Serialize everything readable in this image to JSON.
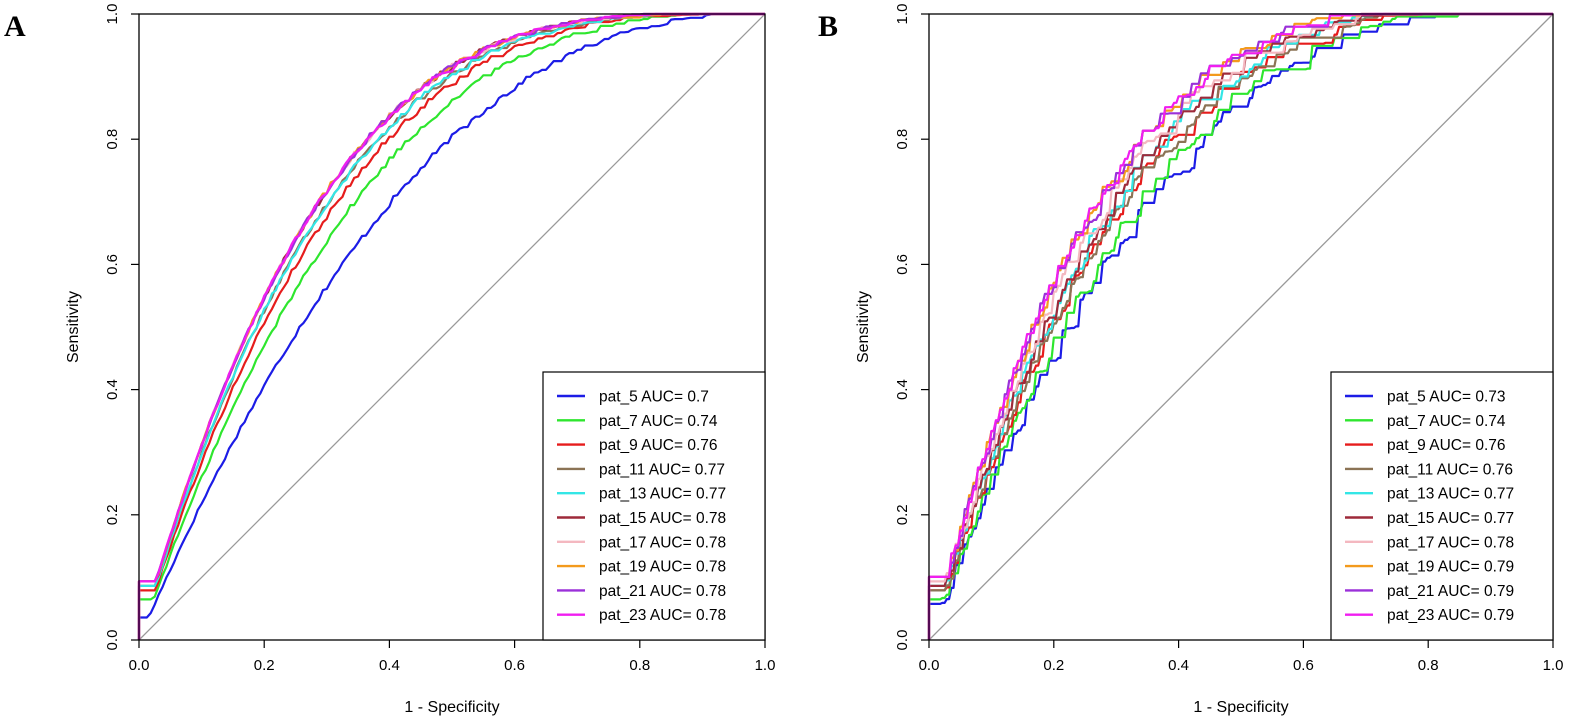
{
  "chart_data": [
    {
      "type": "line",
      "panel_label": "A",
      "xlabel": "1 - Specificity",
      "ylabel": "Sensitivity",
      "xlim": [
        0,
        1
      ],
      "ylim": [
        0,
        1
      ],
      "xticks": [
        "0.0",
        "0.2",
        "0.4",
        "0.6",
        "0.8",
        "1.0"
      ],
      "yticks": [
        "0.0",
        "0.2",
        "0.4",
        "0.6",
        "0.8",
        "1.0"
      ],
      "legend_position": "bottom-right",
      "reference_line": {
        "x": [
          0,
          1
        ],
        "y": [
          0,
          1
        ],
        "color": "#999999"
      },
      "series": [
        {
          "name": "pat_5",
          "legend": "pat_5 AUC= 0.7",
          "auc": 0.7,
          "color": "#1c1ce6"
        },
        {
          "name": "pat_7",
          "legend": "pat_7 AUC= 0.74",
          "auc": 0.74,
          "color": "#2ee62e"
        },
        {
          "name": "pat_9",
          "legend": "pat_9 AUC= 0.76",
          "auc": 0.76,
          "color": "#e61c1c"
        },
        {
          "name": "pat_11",
          "legend": "pat_11 AUC= 0.77",
          "auc": 0.77,
          "color": "#8b7355"
        },
        {
          "name": "pat_13",
          "legend": "pat_13 AUC= 0.77",
          "auc": 0.77,
          "color": "#33e6e6"
        },
        {
          "name": "pat_15",
          "legend": "pat_15 AUC= 0.78",
          "auc": 0.78,
          "color": "#9e2a3a"
        },
        {
          "name": "pat_17",
          "legend": "pat_17 AUC= 0.78",
          "auc": 0.78,
          "color": "#f4b8c0"
        },
        {
          "name": "pat_19",
          "legend": "pat_19 AUC= 0.78",
          "auc": 0.78,
          "color": "#f39a1c"
        },
        {
          "name": "pat_21",
          "legend": "pat_21 AUC= 0.78",
          "auc": 0.78,
          "color": "#9b30d9"
        },
        {
          "name": "pat_23",
          "legend": "pat_23 AUC= 0.78",
          "auc": 0.78,
          "color": "#f01ef0"
        }
      ]
    },
    {
      "type": "line",
      "panel_label": "B",
      "xlabel": "1 - Specificity",
      "ylabel": "Sensitivity",
      "xlim": [
        0,
        1
      ],
      "ylim": [
        0,
        1
      ],
      "xticks": [
        "0.0",
        "0.2",
        "0.4",
        "0.6",
        "0.8",
        "1.0"
      ],
      "yticks": [
        "0.0",
        "0.2",
        "0.4",
        "0.6",
        "0.8",
        "1.0"
      ],
      "legend_position": "bottom-right",
      "reference_line": {
        "x": [
          0,
          1
        ],
        "y": [
          0,
          1
        ],
        "color": "#999999"
      },
      "series": [
        {
          "name": "pat_5",
          "legend": "pat_5 AUC= 0.73",
          "auc": 0.73,
          "color": "#1c1ce6"
        },
        {
          "name": "pat_7",
          "legend": "pat_7 AUC= 0.74",
          "auc": 0.74,
          "color": "#2ee62e"
        },
        {
          "name": "pat_9",
          "legend": "pat_9 AUC= 0.76",
          "auc": 0.76,
          "color": "#e61c1c"
        },
        {
          "name": "pat_11",
          "legend": "pat_11 AUC= 0.76",
          "auc": 0.76,
          "color": "#8b7355"
        },
        {
          "name": "pat_13",
          "legend": "pat_13 AUC= 0.77",
          "auc": 0.77,
          "color": "#33e6e6"
        },
        {
          "name": "pat_15",
          "legend": "pat_15 AUC= 0.77",
          "auc": 0.77,
          "color": "#9e2a3a"
        },
        {
          "name": "pat_17",
          "legend": "pat_17 AUC= 0.78",
          "auc": 0.78,
          "color": "#f4b8c0"
        },
        {
          "name": "pat_19",
          "legend": "pat_19 AUC= 0.79",
          "auc": 0.79,
          "color": "#f39a1c"
        },
        {
          "name": "pat_21",
          "legend": "pat_21 AUC= 0.79",
          "auc": 0.79,
          "color": "#9b30d9"
        },
        {
          "name": "pat_23",
          "legend": "pat_23 AUC= 0.79",
          "auc": 0.79,
          "color": "#f01ef0"
        }
      ]
    }
  ]
}
